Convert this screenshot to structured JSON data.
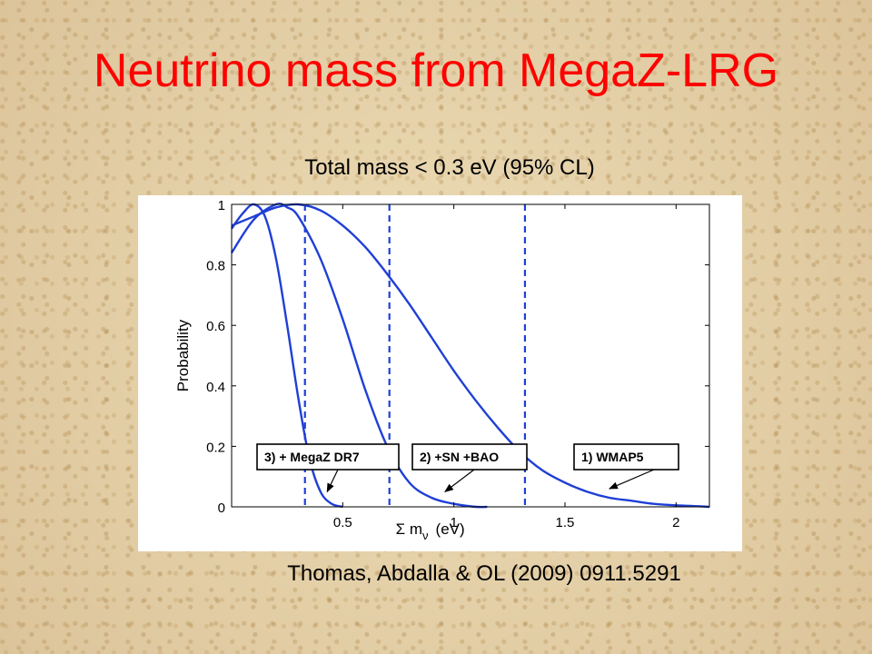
{
  "slide": {
    "title": "Neutrino mass from MegaZ-LRG",
    "subtitle": "Total mass < 0.3 eV  (95% CL)",
    "citation": "Thomas, Abdalla & OL  (2009)  0911.5291"
  },
  "chart_data": {
    "type": "line",
    "title": "",
    "xlabel_main": "Σ m",
    "xlabel_sub": "ν",
    "xlabel_unit": "(eV)",
    "ylabel": "Probability",
    "xlim": [
      0,
      2.15
    ],
    "ylim": [
      0,
      1
    ],
    "xticks": [
      0.5,
      1,
      1.5,
      2
    ],
    "xtick_labels": [
      "0.5",
      "1",
      "1.5",
      "2"
    ],
    "yticks": [
      0,
      0.2,
      0.4,
      0.6,
      0.8,
      1
    ],
    "ytick_labels": [
      "0",
      "0.2",
      "0.4",
      "0.6",
      "0.8",
      "1"
    ],
    "line_color": "#1f3fd6",
    "series": [
      {
        "x": [
          0,
          0.05,
          0.1,
          0.15,
          0.2,
          0.25,
          0.3,
          0.35,
          0.4,
          0.45,
          0.5
        ],
        "y": [
          0.92,
          0.97,
          1.0,
          0.96,
          0.82,
          0.6,
          0.36,
          0.16,
          0.05,
          0.01,
          0.0
        ]
      },
      {
        "x": [
          0,
          0.1,
          0.2,
          0.25,
          0.3,
          0.4,
          0.5,
          0.6,
          0.7,
          0.8,
          0.9,
          1.0,
          1.1,
          1.15
        ],
        "y": [
          0.84,
          0.95,
          1.0,
          0.99,
          0.96,
          0.82,
          0.62,
          0.39,
          0.2,
          0.08,
          0.03,
          0.01,
          0.0,
          0.0
        ]
      },
      {
        "x": [
          0,
          0.1,
          0.2,
          0.3,
          0.4,
          0.5,
          0.6,
          0.7,
          0.8,
          0.9,
          1.0,
          1.1,
          1.2,
          1.3,
          1.4,
          1.5,
          1.6,
          1.7,
          1.8,
          1.9,
          2.0,
          2.1,
          2.15
        ],
        "y": [
          0.93,
          0.96,
          0.99,
          1.0,
          0.98,
          0.93,
          0.86,
          0.77,
          0.67,
          0.56,
          0.45,
          0.35,
          0.26,
          0.18,
          0.12,
          0.08,
          0.05,
          0.03,
          0.02,
          0.01,
          0.005,
          0.002,
          0.0
        ]
      }
    ],
    "vlines": [
      {
        "x": 0.33,
        "style": "dashed"
      },
      {
        "x": 0.71,
        "style": "dashed"
      },
      {
        "x": 1.32,
        "style": "dashed"
      }
    ],
    "annotations": [
      {
        "label": "3) + MegaZ DR7",
        "arrow_to": [
          0.43,
          0.05
        ]
      },
      {
        "label": "2) +SN +BAO",
        "arrow_to": [
          0.96,
          0.05
        ]
      },
      {
        "label": "1)  WMAP5",
        "arrow_to": [
          1.7,
          0.06
        ]
      }
    ]
  }
}
